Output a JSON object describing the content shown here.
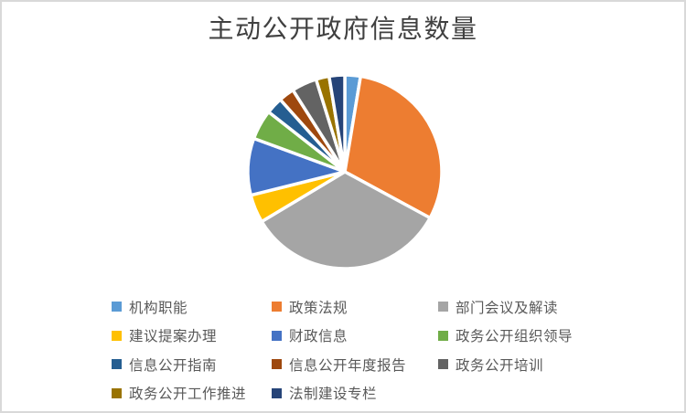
{
  "window": {
    "background": "#ffffff",
    "border_color": "#d9d9d9"
  },
  "chart_data": {
    "type": "pie",
    "title": "主动公开政府信息数量",
    "categories": [
      "机构职能",
      "政策法规",
      "部门会议及解读",
      "建议提案办理",
      "财政信息",
      "政务公开组织领导",
      "信息公开指南",
      "信息公开年度报告",
      "政务公开培训",
      "政务公开工作推进",
      "法制建设专栏"
    ],
    "values_percent": [
      2.6,
      30.3,
      33.5,
      4.7,
      9.5,
      5.0,
      2.8,
      2.6,
      4.2,
      2.2,
      2.6
    ],
    "colors": [
      "#5B9BD5",
      "#ED7D31",
      "#A5A5A5",
      "#FFC000",
      "#4472C4",
      "#70AD47",
      "#255E91",
      "#9E480E",
      "#636363",
      "#997300",
      "#264478"
    ],
    "start_angle_deg": 0,
    "slice_border_color": "#ffffff",
    "legend_position": "bottom",
    "legend_columns": 3,
    "title_color": "#404040",
    "legend_text_color": "#595959"
  }
}
